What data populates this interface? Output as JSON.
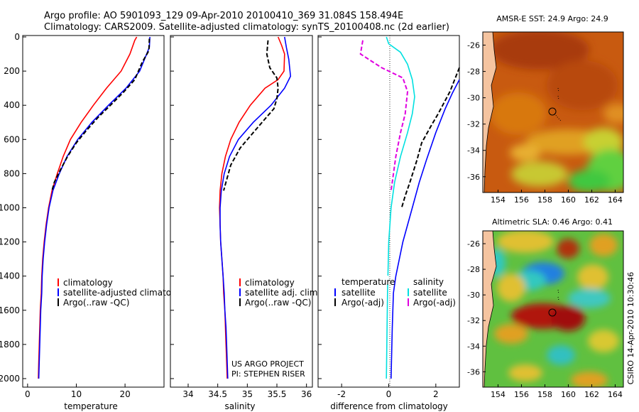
{
  "header": {
    "title_line1": "Argo profile: AO 5901093_129 09-Apr-2010 20100410_369 31.084S 158.494E",
    "title_line2": "Climatology: CARS2009. Satellite-adjusted climatology: synTS_20100408.nc (2d earlier)"
  },
  "colors": {
    "climatology": "#ff0000",
    "satellite": "#0000ff",
    "argo": "#000000",
    "sal_satellite": "#00e0e0",
    "sal_argo": "#e000e0",
    "land": "#f5c4a0"
  },
  "chart_data": [
    {
      "type": "line",
      "panel": "temperature",
      "xlabel": "temperature",
      "ylabel": "",
      "xlim": [
        -1,
        28
      ],
      "ylim": [
        2050,
        0
      ],
      "x_ticks": [
        0,
        10,
        20
      ],
      "y_ticks": [
        0,
        200,
        400,
        600,
        800,
        1000,
        1200,
        1400,
        1600,
        1800,
        2000
      ],
      "legend": [
        "climatology",
        "satellite-adjusted climatology",
        "Argo(..raw -QC)"
      ],
      "series": [
        {
          "name": "climatology",
          "color": "#ff0000",
          "style": "solid",
          "points": [
            [
              22.4,
              0
            ],
            [
              22.0,
              20
            ],
            [
              21.0,
              100
            ],
            [
              19.2,
              200
            ],
            [
              16.2,
              300
            ],
            [
              13.5,
              400
            ],
            [
              11.0,
              500
            ],
            [
              8.8,
              600
            ],
            [
              7.3,
              700
            ],
            [
              6.1,
              800
            ],
            [
              5.0,
              900
            ],
            [
              4.3,
              1000
            ],
            [
              3.8,
              1100
            ],
            [
              3.4,
              1200
            ],
            [
              3.1,
              1300
            ],
            [
              2.9,
              1400
            ],
            [
              2.8,
              1500
            ],
            [
              2.6,
              1600
            ],
            [
              2.5,
              1700
            ],
            [
              2.4,
              1800
            ],
            [
              2.3,
              1900
            ],
            [
              2.2,
              2000
            ]
          ]
        },
        {
          "name": "satellite-adjusted climatology",
          "color": "#0000ff",
          "style": "solid",
          "points": [
            [
              25.1,
              0
            ],
            [
              25.0,
              60
            ],
            [
              24.0,
              130
            ],
            [
              23.0,
              200
            ],
            [
              20.2,
              300
            ],
            [
              16.6,
              400
            ],
            [
              13.2,
              500
            ],
            [
              10.3,
              600
            ],
            [
              8.1,
              700
            ],
            [
              6.5,
              800
            ],
            [
              5.2,
              900
            ],
            [
              4.4,
              1000
            ],
            [
              3.9,
              1100
            ],
            [
              3.5,
              1200
            ],
            [
              3.2,
              1300
            ],
            [
              3.0,
              1400
            ],
            [
              2.9,
              1500
            ],
            [
              2.7,
              1600
            ],
            [
              2.6,
              1700
            ],
            [
              2.5,
              1800
            ],
            [
              2.4,
              1900
            ],
            [
              2.3,
              2000
            ]
          ]
        },
        {
          "name": "Argo(..raw -QC)",
          "color": "#000000",
          "style": "dashed",
          "points": [
            [
              25.0,
              10
            ],
            [
              24.9,
              80
            ],
            [
              23.5,
              150
            ],
            [
              22.0,
              250
            ],
            [
              19.8,
              320
            ],
            [
              17.0,
              400
            ],
            [
              14.5,
              470
            ],
            [
              12.0,
              550
            ],
            [
              10.0,
              620
            ],
            [
              8.2,
              700
            ],
            [
              6.7,
              780
            ],
            [
              5.5,
              850
            ],
            [
              5.0,
              900
            ]
          ]
        }
      ]
    },
    {
      "type": "line",
      "panel": "salinity",
      "xlabel": "salinity",
      "ylabel": "",
      "xlim": [
        33.7,
        36.1
      ],
      "ylim": [
        2050,
        0
      ],
      "x_ticks": [
        34,
        34.5,
        35,
        35.5,
        36
      ],
      "legend": [
        "climatology",
        "satellite adj. clim.",
        "Argo(..raw -QC)"
      ],
      "series": [
        {
          "name": "climatology",
          "color": "#ff0000",
          "style": "solid",
          "points": [
            [
              35.52,
              0
            ],
            [
              35.58,
              50
            ],
            [
              35.63,
              100
            ],
            [
              35.62,
              200
            ],
            [
              35.52,
              250
            ],
            [
              35.3,
              300
            ],
            [
              35.05,
              400
            ],
            [
              34.86,
              500
            ],
            [
              34.72,
              600
            ],
            [
              34.63,
              700
            ],
            [
              34.57,
              800
            ],
            [
              34.54,
              900
            ],
            [
              34.53,
              1000
            ],
            [
              34.54,
              1100
            ],
            [
              34.55,
              1200
            ],
            [
              34.57,
              1300
            ],
            [
              34.59,
              1400
            ],
            [
              34.6,
              1500
            ],
            [
              34.62,
              1600
            ],
            [
              34.63,
              1700
            ],
            [
              34.64,
              1800
            ],
            [
              34.65,
              1900
            ],
            [
              34.66,
              2000
            ]
          ]
        },
        {
          "name": "satellite adj. clim.",
          "color": "#0000ff",
          "style": "solid",
          "points": [
            [
              35.63,
              0
            ],
            [
              35.66,
              60
            ],
            [
              35.7,
              130
            ],
            [
              35.73,
              230
            ],
            [
              35.63,
              300
            ],
            [
              35.4,
              400
            ],
            [
              35.1,
              500
            ],
            [
              34.85,
              600
            ],
            [
              34.7,
              700
            ],
            [
              34.61,
              800
            ],
            [
              34.56,
              900
            ],
            [
              34.54,
              1000
            ],
            [
              34.54,
              1100
            ],
            [
              34.55,
              1200
            ],
            [
              34.57,
              1300
            ],
            [
              34.59,
              1400
            ],
            [
              34.61,
              1500
            ],
            [
              34.62,
              1600
            ],
            [
              34.64,
              1700
            ],
            [
              34.65,
              1800
            ],
            [
              34.66,
              1900
            ],
            [
              34.67,
              2000
            ]
          ]
        },
        {
          "name": "Argo(..raw -QC)",
          "color": "#000000",
          "style": "dashed",
          "points": [
            [
              35.35,
              20
            ],
            [
              35.33,
              100
            ],
            [
              35.38,
              180
            ],
            [
              35.5,
              240
            ],
            [
              35.52,
              300
            ],
            [
              35.5,
              360
            ],
            [
              35.45,
              420
            ],
            [
              35.3,
              480
            ],
            [
              35.1,
              560
            ],
            [
              34.88,
              650
            ],
            [
              34.72,
              750
            ],
            [
              34.64,
              850
            ],
            [
              34.6,
              900
            ]
          ]
        }
      ]
    },
    {
      "type": "line",
      "panel": "difference",
      "xlabel": "difference from climatology",
      "ylabel": "",
      "xlim": [
        -3,
        3
      ],
      "ylim": [
        2050,
        0
      ],
      "x_ticks": [
        -2,
        0,
        2
      ],
      "legend": [
        "temperature",
        "satellite",
        "Argo(-adj)",
        "salinity",
        "satellite",
        "Argo(-adj)"
      ],
      "series": [
        {
          "name": "satellite",
          "group": "temperature",
          "color": "#0000ff",
          "style": "solid",
          "points": [
            [
              3.0,
              250
            ],
            [
              2.7,
              330
            ],
            [
              2.4,
              420
            ],
            [
              2.0,
              560
            ],
            [
              1.6,
              720
            ],
            [
              1.3,
              850
            ],
            [
              1.0,
              1000
            ],
            [
              0.6,
              1200
            ],
            [
              0.3,
              1400
            ],
            [
              0.2,
              1500
            ],
            [
              0.15,
              1700
            ],
            [
              0.1,
              2000
            ]
          ]
        },
        {
          "name": "Argo(-adj)",
          "group": "temperature",
          "color": "#000000",
          "style": "dashed",
          "points": [
            [
              3.0,
              180
            ],
            [
              2.6,
              320
            ],
            [
              2.1,
              450
            ],
            [
              1.8,
              520
            ],
            [
              1.4,
              620
            ],
            [
              1.2,
              720
            ],
            [
              0.9,
              850
            ],
            [
              0.7,
              930
            ],
            [
              0.55,
              1000
            ]
          ]
        },
        {
          "name": "satellite",
          "group": "salinity",
          "color": "#00e0e0",
          "style": "solid",
          "points": [
            [
              -0.1,
              0
            ],
            [
              0.0,
              40
            ],
            [
              0.5,
              90
            ],
            [
              0.8,
              160
            ],
            [
              1.0,
              250
            ],
            [
              1.1,
              350
            ],
            [
              1.0,
              450
            ],
            [
              0.8,
              560
            ],
            [
              0.5,
              700
            ],
            [
              0.25,
              850
            ],
            [
              0.1,
              1000
            ],
            [
              0.0,
              1200
            ],
            [
              -0.05,
              1500
            ],
            [
              -0.1,
              2000
            ]
          ]
        },
        {
          "name": "Argo(-adj)",
          "group": "salinity",
          "color": "#e000e0",
          "style": "dashed",
          "points": [
            [
              -1.1,
              20
            ],
            [
              -1.2,
              100
            ],
            [
              -0.3,
              180
            ],
            [
              0.6,
              240
            ],
            [
              0.8,
              320
            ],
            [
              0.7,
              450
            ],
            [
              0.5,
              560
            ],
            [
              0.3,
              700
            ],
            [
              0.15,
              850
            ],
            [
              0.1,
              900
            ]
          ]
        }
      ]
    },
    {
      "type": "heatmap",
      "panel": "amsr-sst",
      "title": "AMSR-E SST: 24.9 Argo: 24.9",
      "x_ticks": [
        154,
        156,
        158,
        160,
        162,
        164
      ],
      "y_ticks": [
        -26,
        -28,
        -30,
        -32,
        -34,
        -36
      ],
      "xlim": [
        152.7,
        164.7
      ],
      "ylim": [
        -37.2,
        -25
      ],
      "marker": [
        158.5,
        -31.1
      ]
    },
    {
      "type": "heatmap",
      "panel": "altimetric-sla",
      "title": "Altimetric SLA: 0.46 Argo: 0.41",
      "x_ticks": [
        154,
        156,
        158,
        160,
        162,
        164
      ],
      "y_ticks": [
        -26,
        -28,
        -30,
        -32,
        -34,
        -36
      ],
      "xlim": [
        152.7,
        164.7
      ],
      "ylim": [
        -37.2,
        -25
      ],
      "marker": [
        158.5,
        -31.1
      ]
    }
  ],
  "annotations": {
    "project_line1": "US ARGO PROJECT",
    "project_line2": "PI: STEPHEN RISER",
    "credit": "CSIRO 14-Apr-2010 10:30:46"
  }
}
